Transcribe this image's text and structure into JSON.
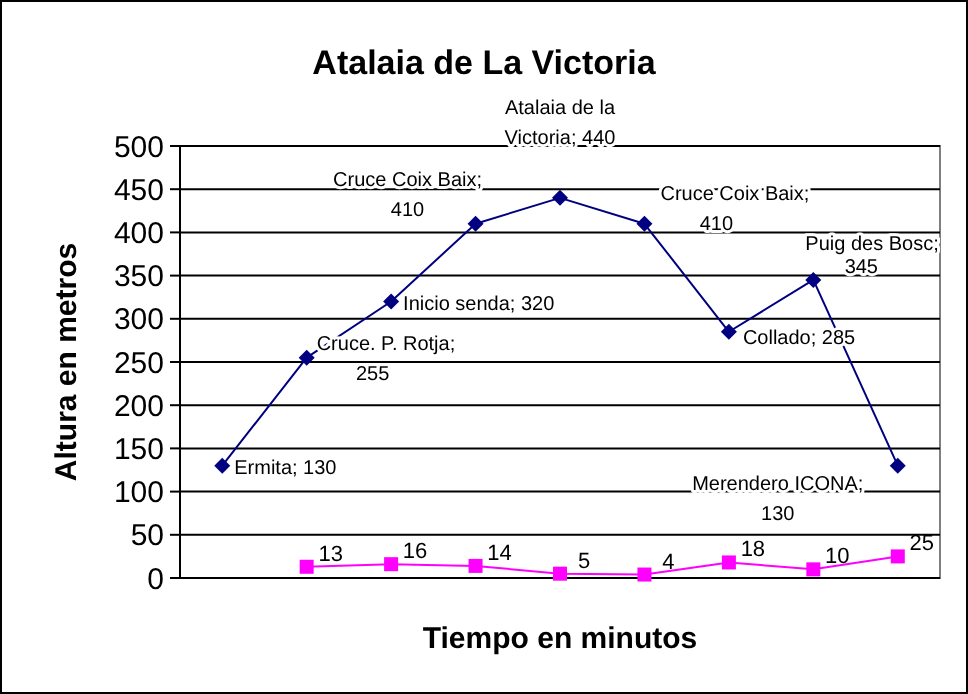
{
  "chart_data": {
    "type": "line",
    "title": "Atalaia de La Victoria",
    "xlabel": "Tiempo en minutos",
    "ylabel": "Altura en metros",
    "categories": [
      null,
      null,
      null,
      null,
      null,
      null,
      null,
      null,
      null
    ],
    "series": [
      {
        "color": "#000080",
        "marker": "diamond",
        "values": [
          130,
          255,
          320,
          410,
          440,
          410,
          285,
          345,
          130
        ],
        "value_labels": [
          "Ermita; 130",
          "Cruce. P. Rotja; 255",
          "Inicio senda; 320",
          "Cruce Coix Baix; 410",
          "Atalaia de la Victoria; 440",
          "Cruce Coix Baix; 410",
          "Collado; 285",
          "Puig des Bosc; 345",
          "Merendero ICONA; 130"
        ]
      },
      {
        "color": "#ff00ff",
        "marker": "square",
        "values": [
          null,
          13,
          16,
          14,
          5,
          4,
          18,
          10,
          25
        ],
        "value_labels": [
          null,
          "13",
          "16",
          "14",
          "5",
          "4",
          "18",
          "10",
          "25"
        ]
      }
    ],
    "ylim": [
      0,
      500
    ],
    "yticks": [
      0,
      50,
      100,
      150,
      200,
      250,
      300,
      350,
      400,
      450,
      500
    ],
    "grid": "y"
  }
}
